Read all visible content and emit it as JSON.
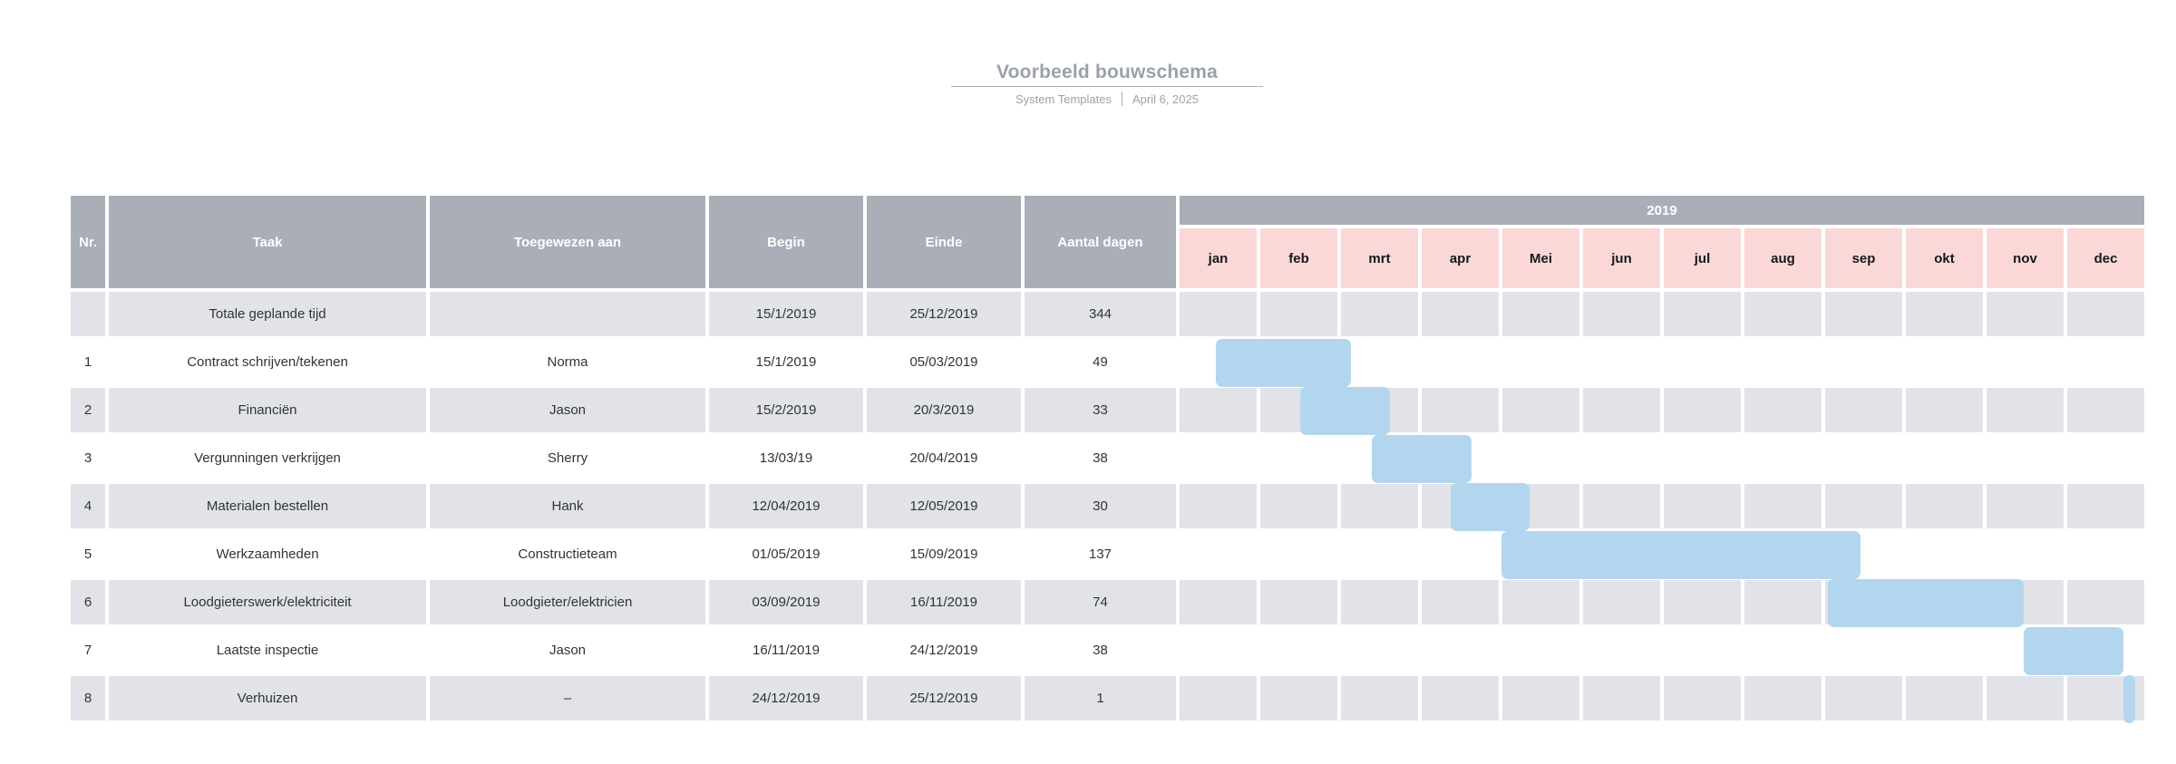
{
  "header": {
    "title": "Voorbeeld bouwschema",
    "author": "System Templates",
    "date": "April 6, 2025"
  },
  "table": {
    "columns": [
      "Nr.",
      "Taak",
      "Toegewezen aan",
      "Begin",
      "Einde",
      "Aantal dagen"
    ],
    "year": "2019",
    "months": [
      "jan",
      "feb",
      "mrt",
      "apr",
      "Mei",
      "jun",
      "jul",
      "aug",
      "sep",
      "okt",
      "nov",
      "dec"
    ],
    "rows": [
      {
        "nr": "",
        "taak": "Totale geplande tijd",
        "toegewezen": "",
        "begin": "15/1/2019",
        "einde": "25/12/2019",
        "dagen": "344",
        "bar": false
      },
      {
        "nr": "1",
        "taak": "Contract schrijven/tekenen",
        "toegewezen": "Norma",
        "begin": "15/1/2019",
        "einde": "05/03/2019",
        "dagen": "49",
        "bar": true
      },
      {
        "nr": "2",
        "taak": "Financiën",
        "toegewezen": "Jason",
        "begin": "15/2/2019",
        "einde": "20/3/2019",
        "dagen": "33",
        "bar": true
      },
      {
        "nr": "3",
        "taak": "Vergunningen verkrijgen",
        "toegewezen": "Sherry",
        "begin": "13/03/19",
        "einde": "20/04/2019",
        "dagen": "38",
        "bar": true
      },
      {
        "nr": "4",
        "taak": "Materialen bestellen",
        "toegewezen": "Hank",
        "begin": "12/04/2019",
        "einde": "12/05/2019",
        "dagen": "30",
        "bar": true
      },
      {
        "nr": "5",
        "taak": "Werkzaamheden",
        "toegewezen": "Constructieteam",
        "begin": "01/05/2019",
        "einde": "15/09/2019",
        "dagen": "137",
        "bar": true
      },
      {
        "nr": "6",
        "taak": "Loodgieterswerk/elektriciteit",
        "toegewezen": "Loodgieter/elektricien",
        "begin": "03/09/2019",
        "einde": "16/11/2019",
        "dagen": "74",
        "bar": true
      },
      {
        "nr": "7",
        "taak": "Laatste inspectie",
        "toegewezen": "Jason",
        "begin": "16/11/2019",
        "einde": "24/12/2019",
        "dagen": "38",
        "bar": true
      },
      {
        "nr": "8",
        "taak": "Verhuizen",
        "toegewezen": "–",
        "begin": "24/12/2019",
        "einde": "25/12/2019",
        "dagen": "1",
        "bar": true
      }
    ]
  },
  "colors": {
    "header_bg": "#a9aeb7",
    "row_alt_bg": "#e1e3e8",
    "month_header_bg": "#fbd8d8",
    "gantt_bar": "#b3d6ef",
    "title_text": "#9aa1ab"
  },
  "chart_data": {
    "type": "table",
    "title": "Voorbeeld bouwschema",
    "subtitle": "System Templates | April 6, 2025",
    "columns": [
      "Nr.",
      "Taak",
      "Toegewezen aan",
      "Begin",
      "Einde",
      "Aantal dagen"
    ],
    "rows": [
      [
        "",
        "Totale geplande tijd",
        "",
        "15/1/2019",
        "25/12/2019",
        344
      ],
      [
        "1",
        "Contract schrijven/tekenen",
        "Norma",
        "15/1/2019",
        "05/03/2019",
        49
      ],
      [
        "2",
        "Financiën",
        "Jason",
        "15/2/2019",
        "20/3/2019",
        33
      ],
      [
        "3",
        "Vergunningen verkrijgen",
        "Sherry",
        "13/03/19",
        "20/04/2019",
        38
      ],
      [
        "4",
        "Materialen bestellen",
        "Hank",
        "12/04/2019",
        "12/05/2019",
        30
      ],
      [
        "5",
        "Werkzaamheden",
        "Constructieteam",
        "01/05/2019",
        "15/09/2019",
        137
      ],
      [
        "6",
        "Loodgieterswerk/elektriciteit",
        "Loodgieter/elektricien",
        "03/09/2019",
        "16/11/2019",
        74
      ],
      [
        "7",
        "Laatste inspectie",
        "Jason",
        "16/11/2019",
        "24/12/2019",
        38
      ],
      [
        "8",
        "Verhuizen",
        "–",
        "24/12/2019",
        "25/12/2019",
        1
      ]
    ],
    "gantt": {
      "year": 2019,
      "axis_months": [
        "jan",
        "feb",
        "mrt",
        "apr",
        "Mei",
        "jun",
        "jul",
        "aug",
        "sep",
        "okt",
        "nov",
        "dec"
      ],
      "bars": [
        {
          "task": "Contract schrijven/tekenen",
          "start": "15/1/2019",
          "end": "05/03/2019",
          "days": 49
        },
        {
          "task": "Financiën",
          "start": "15/2/2019",
          "end": "20/3/2019",
          "days": 33
        },
        {
          "task": "Vergunningen verkrijgen",
          "start": "13/03/2019",
          "end": "20/04/2019",
          "days": 38
        },
        {
          "task": "Materialen bestellen",
          "start": "12/04/2019",
          "end": "12/05/2019",
          "days": 30
        },
        {
          "task": "Werkzaamheden",
          "start": "01/05/2019",
          "end": "15/09/2019",
          "days": 137
        },
        {
          "task": "Loodgieterswerk/elektriciteit",
          "start": "03/09/2019",
          "end": "16/11/2019",
          "days": 74
        },
        {
          "task": "Laatste inspectie",
          "start": "16/11/2019",
          "end": "24/12/2019",
          "days": 38
        },
        {
          "task": "Verhuizen",
          "start": "24/12/2019",
          "end": "25/12/2019",
          "days": 1
        }
      ],
      "legend": "none",
      "grid": true
    }
  }
}
